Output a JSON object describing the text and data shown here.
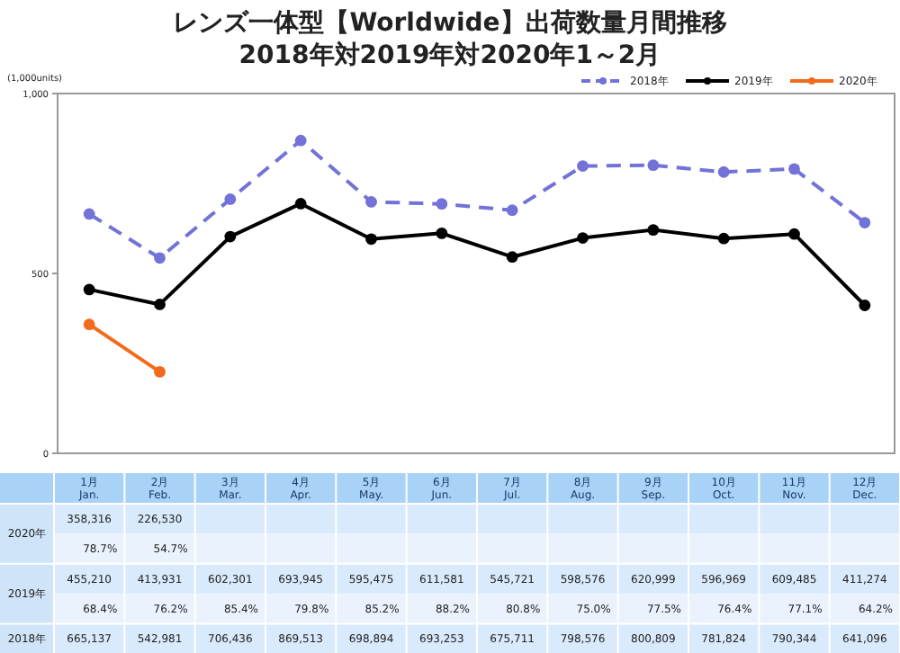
{
  "chart_data": {
    "type": "line",
    "title": "レンズ一体型【Worldwide】出荷数量月間推移",
    "subtitle": "2018年対2019年対2020年1～2月",
    "ylabel": "(1,000units)",
    "categories": [
      "1月 Jan.",
      "2月 Feb.",
      "3月 Mar.",
      "4月 Apr.",
      "5月 May.",
      "6月 Jun.",
      "7月 Jul.",
      "8月 Aug.",
      "9月 Sep.",
      "10月 Oct.",
      "11月 Nov.",
      "12月 Dec."
    ],
    "series": [
      {
        "name": "2018年",
        "color": "#7272d8",
        "line_style": "dashed",
        "values": [
          665.137,
          542.981,
          706.436,
          869.513,
          698.894,
          693.253,
          675.711,
          798.576,
          800.809,
          781.824,
          790.344,
          641.096
        ]
      },
      {
        "name": "2019年",
        "color": "#000000",
        "line_style": "solid",
        "values": [
          455.21,
          413.931,
          602.301,
          693.945,
          595.475,
          611.581,
          545.721,
          598.576,
          620.999,
          596.969,
          609.485,
          411.274
        ]
      },
      {
        "name": "2020年",
        "color": "#f26b1d",
        "line_style": "solid",
        "values": [
          358.316,
          226.53,
          null,
          null,
          null,
          null,
          null,
          null,
          null,
          null,
          null,
          null
        ]
      }
    ],
    "annotations": [
      "358,316",
      "226,530",
      "78.7%",
      "54.7%",
      "455,210",
      "413,931",
      "602,301",
      "693,945",
      "595,475",
      "611,581",
      "545,721",
      "598,576",
      "620,999",
      "596,969",
      "609,485",
      "411,274",
      "68.4%",
      "76.2%",
      "85.4%",
      "79.8%",
      "85.2%",
      "88.2%",
      "80.8%",
      "75.0%",
      "77.5%",
      "76.4%",
      "77.1%",
      "64.2%",
      "665,137",
      "542,981",
      "706,436",
      "869,513",
      "698,894",
      "693,253",
      "675,711",
      "798,576",
      "800,809",
      "781,824",
      "790,344",
      "641,096"
    ],
    "ylim": [
      0,
      1000
    ],
    "yticks": [
      0,
      500,
      {
        "value": 1000,
        "label": "1,000"
      }
    ],
    "grid": false,
    "legend": "top right",
    "marker": "circle"
  }
}
